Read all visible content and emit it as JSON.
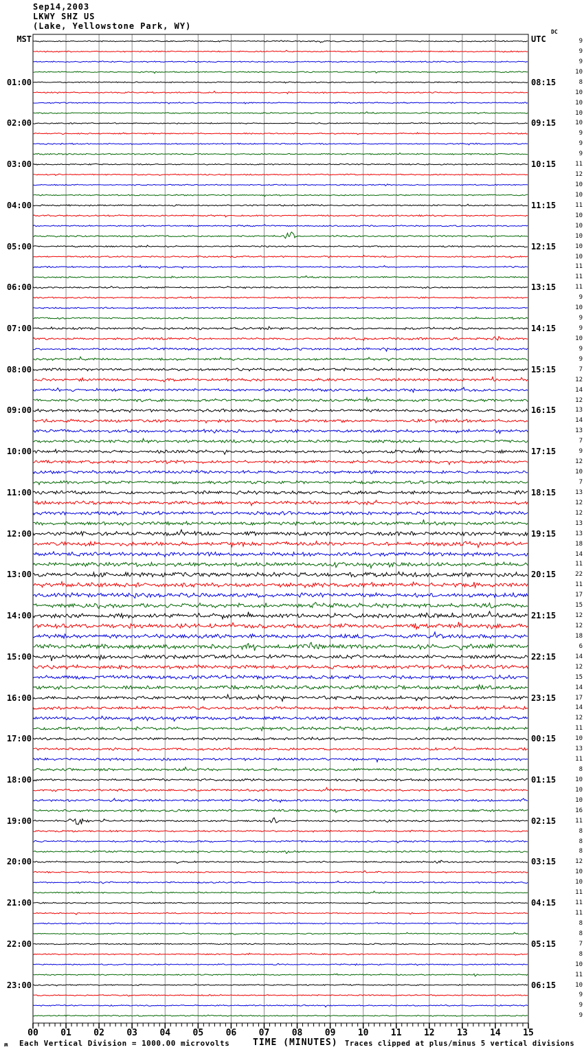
{
  "header": {
    "date": "Sep14,2003",
    "station": "LKWY SHZ US",
    "location": "(Lake, Yellowstone Park, WY)"
  },
  "axes": {
    "left_header": "MST",
    "right_header": "UTC",
    "dc_header": "DC",
    "x_ticks": [
      "00",
      "01",
      "02",
      "03",
      "04",
      "05",
      "06",
      "07",
      "08",
      "09",
      "10",
      "11",
      "12",
      "13",
      "14",
      "15"
    ],
    "x_title": "TIME (MINUTES)",
    "minor_ticks_per_minute": 6
  },
  "footer": {
    "scale_glyph": "ʍ",
    "scale_note": "Each Vertical Division = 1000.00 microvolts",
    "clip_note": "Traces clipped at plus/minus 5 vertical divisions"
  },
  "colors": {
    "trace_cycle": [
      "#000000",
      "#ee0000",
      "#0000dd",
      "#006600"
    ],
    "grid": "#8a8a8a",
    "frame": "#000000",
    "background": "#ffffff"
  },
  "chart_data": {
    "type": "line",
    "title": "Helicorder record LKWY SHZ US (Lake, Yellowstone Park, WY) Sep14,2003",
    "x_range_minutes": [
      0,
      15
    ],
    "minutes_per_line": 15,
    "lines_per_hour": 4,
    "timezone_left": "MST",
    "timezone_right": "UTC",
    "events_format": [
      "minute",
      "amplitude_px",
      "width_minutes"
    ],
    "rows": [
      {
        "mst": "",
        "utc": "",
        "dc": 9,
        "n": 0.5,
        "ev": []
      },
      {
        "mst": "",
        "utc": "",
        "dc": 9,
        "n": 0.5,
        "ev": []
      },
      {
        "mst": "",
        "utc": "",
        "dc": 9,
        "n": 0.5,
        "ev": []
      },
      {
        "mst": "",
        "utc": "",
        "dc": 10,
        "n": 0.5,
        "ev": []
      },
      {
        "mst": "01:00",
        "utc": "08:15",
        "dc": 8,
        "n": 0.5,
        "ev": []
      },
      {
        "mst": "",
        "utc": "",
        "dc": 10,
        "n": 0.5,
        "ev": []
      },
      {
        "mst": "",
        "utc": "",
        "dc": 10,
        "n": 0.5,
        "ev": []
      },
      {
        "mst": "",
        "utc": "",
        "dc": 10,
        "n": 0.5,
        "ev": []
      },
      {
        "mst": "02:00",
        "utc": "09:15",
        "dc": 10,
        "n": 0.5,
        "ev": []
      },
      {
        "mst": "",
        "utc": "",
        "dc": 9,
        "n": 0.5,
        "ev": []
      },
      {
        "mst": "",
        "utc": "",
        "dc": 9,
        "n": 0.5,
        "ev": []
      },
      {
        "mst": "",
        "utc": "",
        "dc": 9,
        "n": 0.5,
        "ev": []
      },
      {
        "mst": "03:00",
        "utc": "10:15",
        "dc": 11,
        "n": 0.5,
        "ev": []
      },
      {
        "mst": "",
        "utc": "",
        "dc": 12,
        "n": 0.5,
        "ev": [
          [
            3.9,
            2,
            0.05
          ]
        ]
      },
      {
        "mst": "",
        "utc": "",
        "dc": 10,
        "n": 0.5,
        "ev": []
      },
      {
        "mst": "",
        "utc": "",
        "dc": 10,
        "n": 0.5,
        "ev": []
      },
      {
        "mst": "04:00",
        "utc": "11:15",
        "dc": 11,
        "n": 0.6,
        "ev": []
      },
      {
        "mst": "",
        "utc": "",
        "dc": 10,
        "n": 0.6,
        "ev": []
      },
      {
        "mst": "",
        "utc": "",
        "dc": 10,
        "n": 0.6,
        "ev": []
      },
      {
        "mst": "",
        "utc": "",
        "dc": 10,
        "n": 0.6,
        "ev": [
          [
            7.8,
            7,
            0.12
          ],
          [
            3.0,
            1.5,
            0.05
          ],
          [
            4.4,
            1.5,
            0.04
          ]
        ]
      },
      {
        "mst": "05:00",
        "utc": "12:15",
        "dc": 10,
        "n": 0.6,
        "ev": []
      },
      {
        "mst": "",
        "utc": "",
        "dc": 10,
        "n": 0.6,
        "ev": []
      },
      {
        "mst": "",
        "utc": "",
        "dc": 11,
        "n": 0.6,
        "ev": []
      },
      {
        "mst": "",
        "utc": "",
        "dc": 11,
        "n": 0.6,
        "ev": []
      },
      {
        "mst": "06:00",
        "utc": "13:15",
        "dc": 11,
        "n": 0.6,
        "ev": []
      },
      {
        "mst": "",
        "utc": "",
        "dc": 9,
        "n": 0.6,
        "ev": []
      },
      {
        "mst": "",
        "utc": "",
        "dc": 10,
        "n": 0.6,
        "ev": []
      },
      {
        "mst": "",
        "utc": "",
        "dc": 9,
        "n": 0.6,
        "ev": [
          [
            14.5,
            2,
            0.05
          ]
        ]
      },
      {
        "mst": "07:00",
        "utc": "14:15",
        "dc": 9,
        "n": 0.9,
        "ev": []
      },
      {
        "mst": "",
        "utc": "",
        "dc": 10,
        "n": 0.9,
        "ev": [
          [
            10.05,
            3,
            0.08
          ],
          [
            14.05,
            3,
            0.12
          ]
        ]
      },
      {
        "mst": "",
        "utc": "",
        "dc": 9,
        "n": 0.9,
        "ev": []
      },
      {
        "mst": "",
        "utc": "",
        "dc": 9,
        "n": 0.9,
        "ev": [
          [
            9.0,
            1.5,
            0.05
          ]
        ]
      },
      {
        "mst": "08:00",
        "utc": "15:15",
        "dc": 7,
        "n": 1.1,
        "ev": []
      },
      {
        "mst": "",
        "utc": "",
        "dc": 12,
        "n": 1.1,
        "ev": []
      },
      {
        "mst": "",
        "utc": "",
        "dc": 14,
        "n": 1.1,
        "ev": []
      },
      {
        "mst": "",
        "utc": "",
        "dc": 12,
        "n": 1.1,
        "ev": []
      },
      {
        "mst": "09:00",
        "utc": "16:15",
        "dc": 13,
        "n": 1.2,
        "ev": []
      },
      {
        "mst": "",
        "utc": "",
        "dc": 14,
        "n": 1.2,
        "ev": []
      },
      {
        "mst": "",
        "utc": "",
        "dc": 13,
        "n": 1.2,
        "ev": []
      },
      {
        "mst": "",
        "utc": "",
        "dc": 7,
        "n": 1.2,
        "ev": []
      },
      {
        "mst": "10:00",
        "utc": "17:15",
        "dc": 9,
        "n": 1.2,
        "ev": [
          [
            9.9,
            2,
            0.08
          ]
        ]
      },
      {
        "mst": "",
        "utc": "",
        "dc": 12,
        "n": 1.2,
        "ev": []
      },
      {
        "mst": "",
        "utc": "",
        "dc": 10,
        "n": 1.2,
        "ev": []
      },
      {
        "mst": "",
        "utc": "",
        "dc": 7,
        "n": 1.2,
        "ev": []
      },
      {
        "mst": "11:00",
        "utc": "18:15",
        "dc": 13,
        "n": 1.4,
        "ev": [
          [
            2.0,
            2,
            0.06
          ]
        ]
      },
      {
        "mst": "",
        "utc": "",
        "dc": 12,
        "n": 1.4,
        "ev": []
      },
      {
        "mst": "",
        "utc": "",
        "dc": 12,
        "n": 1.4,
        "ev": []
      },
      {
        "mst": "",
        "utc": "",
        "dc": 13,
        "n": 1.4,
        "ev": []
      },
      {
        "mst": "12:00",
        "utc": "19:15",
        "dc": 13,
        "n": 1.6,
        "ev": [
          [
            2.1,
            2.5,
            0.1
          ]
        ]
      },
      {
        "mst": "",
        "utc": "",
        "dc": 18,
        "n": 1.6,
        "ev": [
          [
            13.1,
            3.5,
            0.1
          ]
        ]
      },
      {
        "mst": "",
        "utc": "",
        "dc": 14,
        "n": 1.6,
        "ev": []
      },
      {
        "mst": "",
        "utc": "",
        "dc": 11,
        "n": 1.6,
        "ev": [
          [
            2.2,
            2,
            0.08
          ]
        ]
      },
      {
        "mst": "13:00",
        "utc": "20:15",
        "dc": 22,
        "n": 1.8,
        "ev": [
          [
            2.1,
            3.5,
            0.15
          ],
          [
            6.0,
            2.5,
            0.1
          ],
          [
            13.2,
            4,
            0.1
          ]
        ]
      },
      {
        "mst": "",
        "utc": "",
        "dc": 11,
        "n": 1.8,
        "ev": [
          [
            11.5,
            3,
            0.08
          ],
          [
            13.5,
            3.5,
            0.12
          ],
          [
            14.9,
            3,
            0.1
          ]
        ]
      },
      {
        "mst": "",
        "utc": "",
        "dc": 17,
        "n": 1.8,
        "ev": []
      },
      {
        "mst": "",
        "utc": "",
        "dc": 15,
        "n": 1.8,
        "ev": [
          [
            11.7,
            4,
            0.12
          ],
          [
            12.15,
            3,
            0.06
          ],
          [
            14.0,
            4,
            0.15
          ]
        ]
      },
      {
        "mst": "14:00",
        "utc": "21:15",
        "dc": 12,
        "n": 1.8,
        "ev": [
          [
            9.75,
            3,
            0.06
          ],
          [
            12.6,
            4,
            0.08
          ]
        ]
      },
      {
        "mst": "",
        "utc": "",
        "dc": 12,
        "n": 1.8,
        "ev": [
          [
            11.6,
            3.5,
            0.1
          ],
          [
            13.9,
            4.5,
            0.15
          ]
        ]
      },
      {
        "mst": "",
        "utc": "",
        "dc": 18,
        "n": 1.8,
        "ev": [
          [
            4.7,
            3,
            0.08
          ],
          [
            8.6,
            2,
            0.06
          ]
        ]
      },
      {
        "mst": "",
        "utc": "",
        "dc": 6,
        "n": 1.8,
        "ev": [
          [
            6.5,
            3.5,
            0.1
          ],
          [
            10.0,
            3,
            0.08
          ],
          [
            11.7,
            4.5,
            0.1
          ],
          [
            13.0,
            3,
            0.08
          ]
        ]
      },
      {
        "mst": "15:00",
        "utc": "22:15",
        "dc": 14,
        "n": 1.6,
        "ev": [
          [
            2.1,
            3,
            0.1
          ]
        ]
      },
      {
        "mst": "",
        "utc": "",
        "dc": 12,
        "n": 1.6,
        "ev": [
          [
            13.9,
            3,
            0.08
          ]
        ]
      },
      {
        "mst": "",
        "utc": "",
        "dc": 15,
        "n": 1.6,
        "ev": [
          [
            12.7,
            2.5,
            0.06
          ]
        ]
      },
      {
        "mst": "",
        "utc": "",
        "dc": 14,
        "n": 1.6,
        "ev": [
          [
            12.9,
            2.5,
            0.2
          ]
        ]
      },
      {
        "mst": "16:00",
        "utc": "23:15",
        "dc": 17,
        "n": 1.3,
        "ev": []
      },
      {
        "mst": "",
        "utc": "",
        "dc": 14,
        "n": 1.3,
        "ev": []
      },
      {
        "mst": "",
        "utc": "",
        "dc": 12,
        "n": 1.3,
        "ev": [
          [
            14.5,
            3,
            0.08
          ]
        ]
      },
      {
        "mst": "",
        "utc": "",
        "dc": 11,
        "n": 1.3,
        "ev": []
      },
      {
        "mst": "17:00",
        "utc": "00:15",
        "dc": 10,
        "n": 1.0,
        "ev": []
      },
      {
        "mst": "",
        "utc": "",
        "dc": 13,
        "n": 1.0,
        "ev": []
      },
      {
        "mst": "",
        "utc": "",
        "dc": 11,
        "n": 1.0,
        "ev": []
      },
      {
        "mst": "",
        "utc": "",
        "dc": 8,
        "n": 1.0,
        "ev": []
      },
      {
        "mst": "18:00",
        "utc": "01:15",
        "dc": 10,
        "n": 0.9,
        "ev": []
      },
      {
        "mst": "",
        "utc": "",
        "dc": 10,
        "n": 0.9,
        "ev": []
      },
      {
        "mst": "",
        "utc": "",
        "dc": 10,
        "n": 0.9,
        "ev": []
      },
      {
        "mst": "",
        "utc": "",
        "dc": 16,
        "n": 0.9,
        "ev": [
          [
            1.65,
            3.5,
            0.03
          ]
        ]
      },
      {
        "mst": "19:00",
        "utc": "02:15",
        "dc": 11,
        "n": 0.7,
        "ev": [
          [
            1.4,
            6,
            0.2
          ],
          [
            2.1,
            3,
            0.08
          ],
          [
            4.0,
            2,
            0.05
          ],
          [
            7.3,
            5,
            0.08
          ]
        ]
      },
      {
        "mst": "",
        "utc": "",
        "dc": 8,
        "n": 0.7,
        "ev": []
      },
      {
        "mst": "",
        "utc": "",
        "dc": 8,
        "n": 0.7,
        "ev": []
      },
      {
        "mst": "",
        "utc": "",
        "dc": 8,
        "n": 0.7,
        "ev": []
      },
      {
        "mst": "20:00",
        "utc": "03:15",
        "dc": 12,
        "n": 0.6,
        "ev": [
          [
            12.3,
            3,
            0.06
          ],
          [
            13.0,
            1.5,
            0.04
          ]
        ]
      },
      {
        "mst": "",
        "utc": "",
        "dc": 10,
        "n": 0.6,
        "ev": []
      },
      {
        "mst": "",
        "utc": "",
        "dc": 10,
        "n": 0.6,
        "ev": []
      },
      {
        "mst": "",
        "utc": "",
        "dc": 11,
        "n": 0.6,
        "ev": []
      },
      {
        "mst": "21:00",
        "utc": "04:15",
        "dc": 11,
        "n": 0.5,
        "ev": []
      },
      {
        "mst": "",
        "utc": "",
        "dc": 11,
        "n": 0.5,
        "ev": []
      },
      {
        "mst": "",
        "utc": "",
        "dc": 8,
        "n": 0.5,
        "ev": []
      },
      {
        "mst": "",
        "utc": "",
        "dc": 8,
        "n": 0.5,
        "ev": []
      },
      {
        "mst": "22:00",
        "utc": "05:15",
        "dc": 7,
        "n": 0.5,
        "ev": []
      },
      {
        "mst": "",
        "utc": "",
        "dc": 8,
        "n": 0.5,
        "ev": []
      },
      {
        "mst": "",
        "utc": "",
        "dc": 10,
        "n": 0.5,
        "ev": []
      },
      {
        "mst": "",
        "utc": "",
        "dc": 11,
        "n": 0.5,
        "ev": [
          [
            13.4,
            1.5,
            0.05
          ]
        ]
      },
      {
        "mst": "23:00",
        "utc": "06:15",
        "dc": 10,
        "n": 0.5,
        "ev": []
      },
      {
        "mst": "",
        "utc": "",
        "dc": 9,
        "n": 0.5,
        "ev": []
      },
      {
        "mst": "",
        "utc": "",
        "dc": 9,
        "n": 0.5,
        "ev": []
      },
      {
        "mst": "",
        "utc": "",
        "dc": 9,
        "n": 0.5,
        "ev": []
      }
    ]
  }
}
